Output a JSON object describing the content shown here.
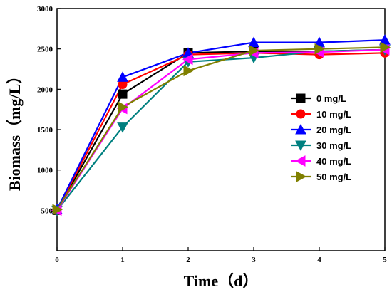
{
  "chart_data": {
    "type": "line",
    "xlabel": "Time（d）",
    "ylabel": "Biomass（mg/L）",
    "xlim": [
      0,
      5
    ],
    "ylim": [
      0,
      3000
    ],
    "x_ticks": [
      0,
      1,
      2,
      3,
      4,
      5
    ],
    "y_ticks": [
      500,
      1000,
      1500,
      2000,
      2500,
      3000
    ],
    "grid": false,
    "legend_position": "center-right",
    "x": [
      0,
      1,
      2,
      3,
      4,
      5
    ],
    "series": [
      {
        "name": "0 mg/L",
        "color": "#000000",
        "marker": "square",
        "values": [
          500,
          1940,
          2450,
          2470,
          2470,
          2490
        ]
      },
      {
        "name": "10 mg/L",
        "color": "#ff0000",
        "marker": "circle",
        "values": [
          500,
          2060,
          2430,
          2450,
          2430,
          2450
        ]
      },
      {
        "name": "20 mg/L",
        "color": "#0000ff",
        "marker": "triangle-up",
        "values": [
          510,
          2150,
          2450,
          2580,
          2580,
          2610
        ]
      },
      {
        "name": "30 mg/L",
        "color": "#008080",
        "marker": "triangle-down",
        "values": [
          500,
          1530,
          2340,
          2390,
          2470,
          2490
        ]
      },
      {
        "name": "40 mg/L",
        "color": "#ff00ff",
        "marker": "triangle-left",
        "values": [
          500,
          1760,
          2370,
          2450,
          2460,
          2490
        ]
      },
      {
        "name": "50 mg/L",
        "color": "#808000",
        "marker": "triangle-right",
        "values": [
          510,
          1780,
          2230,
          2480,
          2500,
          2520
        ]
      }
    ]
  }
}
